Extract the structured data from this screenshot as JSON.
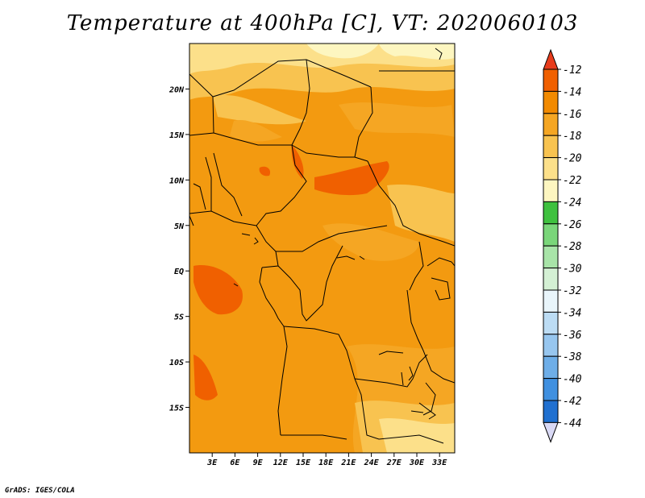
{
  "title": "Temperature at 400hPa [C], VT: 2020060103",
  "credit": "GrADS: IGES/COLA",
  "map": {
    "lon_range": [
      0,
      35
    ],
    "lat_range": [
      -20,
      25
    ],
    "lat_ticks": [
      "20N",
      "15N",
      "10N",
      "5N",
      "EQ",
      "5S",
      "10S",
      "15S"
    ],
    "lon_ticks": [
      "3E",
      "6E",
      "9E",
      "12E",
      "15E",
      "18E",
      "21E",
      "24E",
      "27E",
      "30E",
      "33E"
    ]
  },
  "colorbar": {
    "labels": [
      "-12",
      "-14",
      "-16",
      "-18",
      "-20",
      "-22",
      "-24",
      "-26",
      "-28",
      "-30",
      "-32",
      "-34",
      "-36",
      "-38",
      "-40",
      "-42",
      "-44"
    ],
    "colors": [
      "#f06000",
      "#f28a00",
      "#f5a623",
      "#f8c350",
      "#fce08a",
      "#fdf6c0",
      "#3fc13f",
      "#7ad67a",
      "#a8e4a8",
      "#d4f0d4",
      "#e9f5fb",
      "#bcdcf4",
      "#97c6ef",
      "#6eaee8",
      "#4090e0",
      "#2070d0",
      "#1050b0"
    ],
    "top_arrow_color": "#e83c1c",
    "bottom_arrow_color": "#d9d9f5",
    "bottom_box_color": "#0c1670"
  }
}
